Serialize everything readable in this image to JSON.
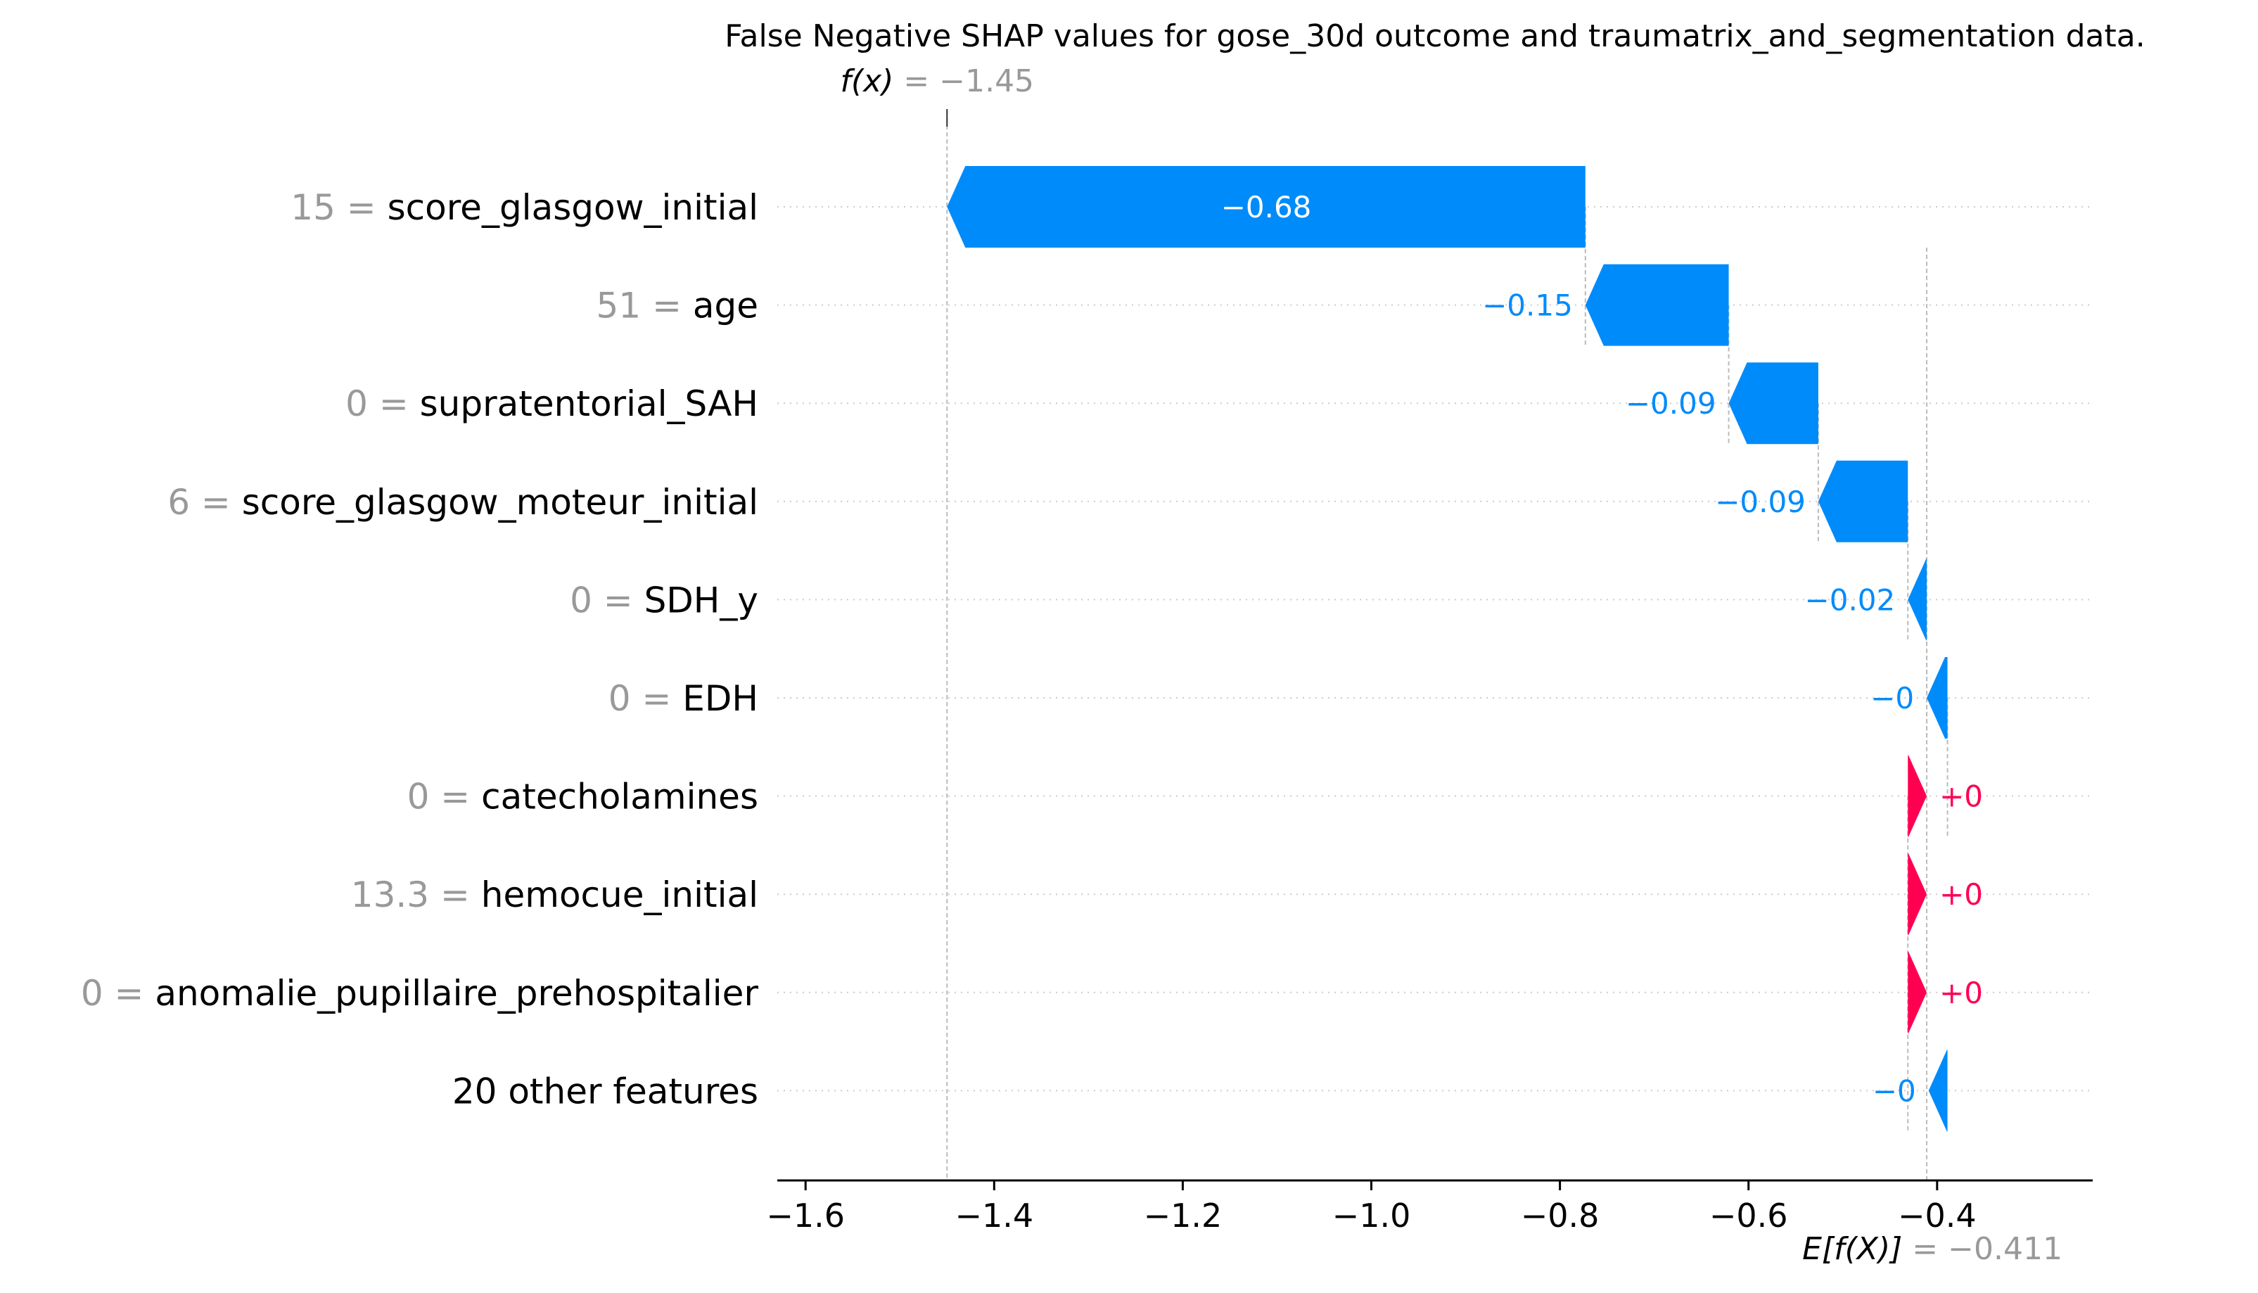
{
  "chart_data": {
    "type": "waterfall",
    "title": "False Negative SHAP values for gose_30d outcome and traumatrix_and_segmentation data.",
    "fx": {
      "label_prefix": "f(x)",
      "value_text": "= −1.45",
      "value": -1.45
    },
    "efx": {
      "label_prefix": "E[f(X)]",
      "value_text": "= −0.411",
      "value": -0.411
    },
    "xlim": [
      -1.63,
      -0.235
    ],
    "xticks": [
      {
        "value": -1.6,
        "label": "−1.6"
      },
      {
        "value": -1.4,
        "label": "−1.4"
      },
      {
        "value": -1.2,
        "label": "−1.2"
      },
      {
        "value": -1.0,
        "label": "−1.0"
      },
      {
        "value": -0.8,
        "label": "−0.8"
      },
      {
        "value": -0.6,
        "label": "−0.6"
      },
      {
        "value": -0.4,
        "label": "−0.4"
      }
    ],
    "features": [
      {
        "value_text": "15 =",
        "name": "score_glasgow_initial",
        "start": -0.773,
        "shap": -0.677,
        "label": "−0.68"
      },
      {
        "value_text": "51 =",
        "name": "age",
        "start": -0.621,
        "shap": -0.152,
        "label": "−0.15"
      },
      {
        "value_text": "0 =",
        "name": "supratentorial_SAH",
        "start": -0.526,
        "shap": -0.095,
        "label": "−0.09"
      },
      {
        "value_text": "6 =",
        "name": "score_glasgow_moteur_initial",
        "start": -0.431,
        "shap": -0.095,
        "label": "−0.09"
      },
      {
        "value_text": "0 =",
        "name": "SDH_y",
        "start": -0.411,
        "shap": -0.02,
        "label": "−0.02"
      },
      {
        "value_text": "0 =",
        "name": "EDH",
        "start": -0.389,
        "shap": -0.022,
        "label": "−0"
      },
      {
        "value_text": "0 =",
        "name": "catecholamines",
        "start": -0.431,
        "shap": 0.02,
        "label": "+0"
      },
      {
        "value_text": "13.3 =",
        "name": "hemocue_initial",
        "start": -0.431,
        "shap": 0.02,
        "label": "+0"
      },
      {
        "value_text": "0 =",
        "name": "anomalie_pupillaire_prehospitalier",
        "start": -0.431,
        "shap": 0.02,
        "label": "+0"
      },
      {
        "value_text": "",
        "name": "20 other features",
        "start": -0.389,
        "shap": -0.02,
        "label": "−0"
      }
    ],
    "colors": {
      "negative": "#008bfb",
      "positive": "#ff0051",
      "gray_text": "#999999",
      "axis": "#000000"
    }
  }
}
